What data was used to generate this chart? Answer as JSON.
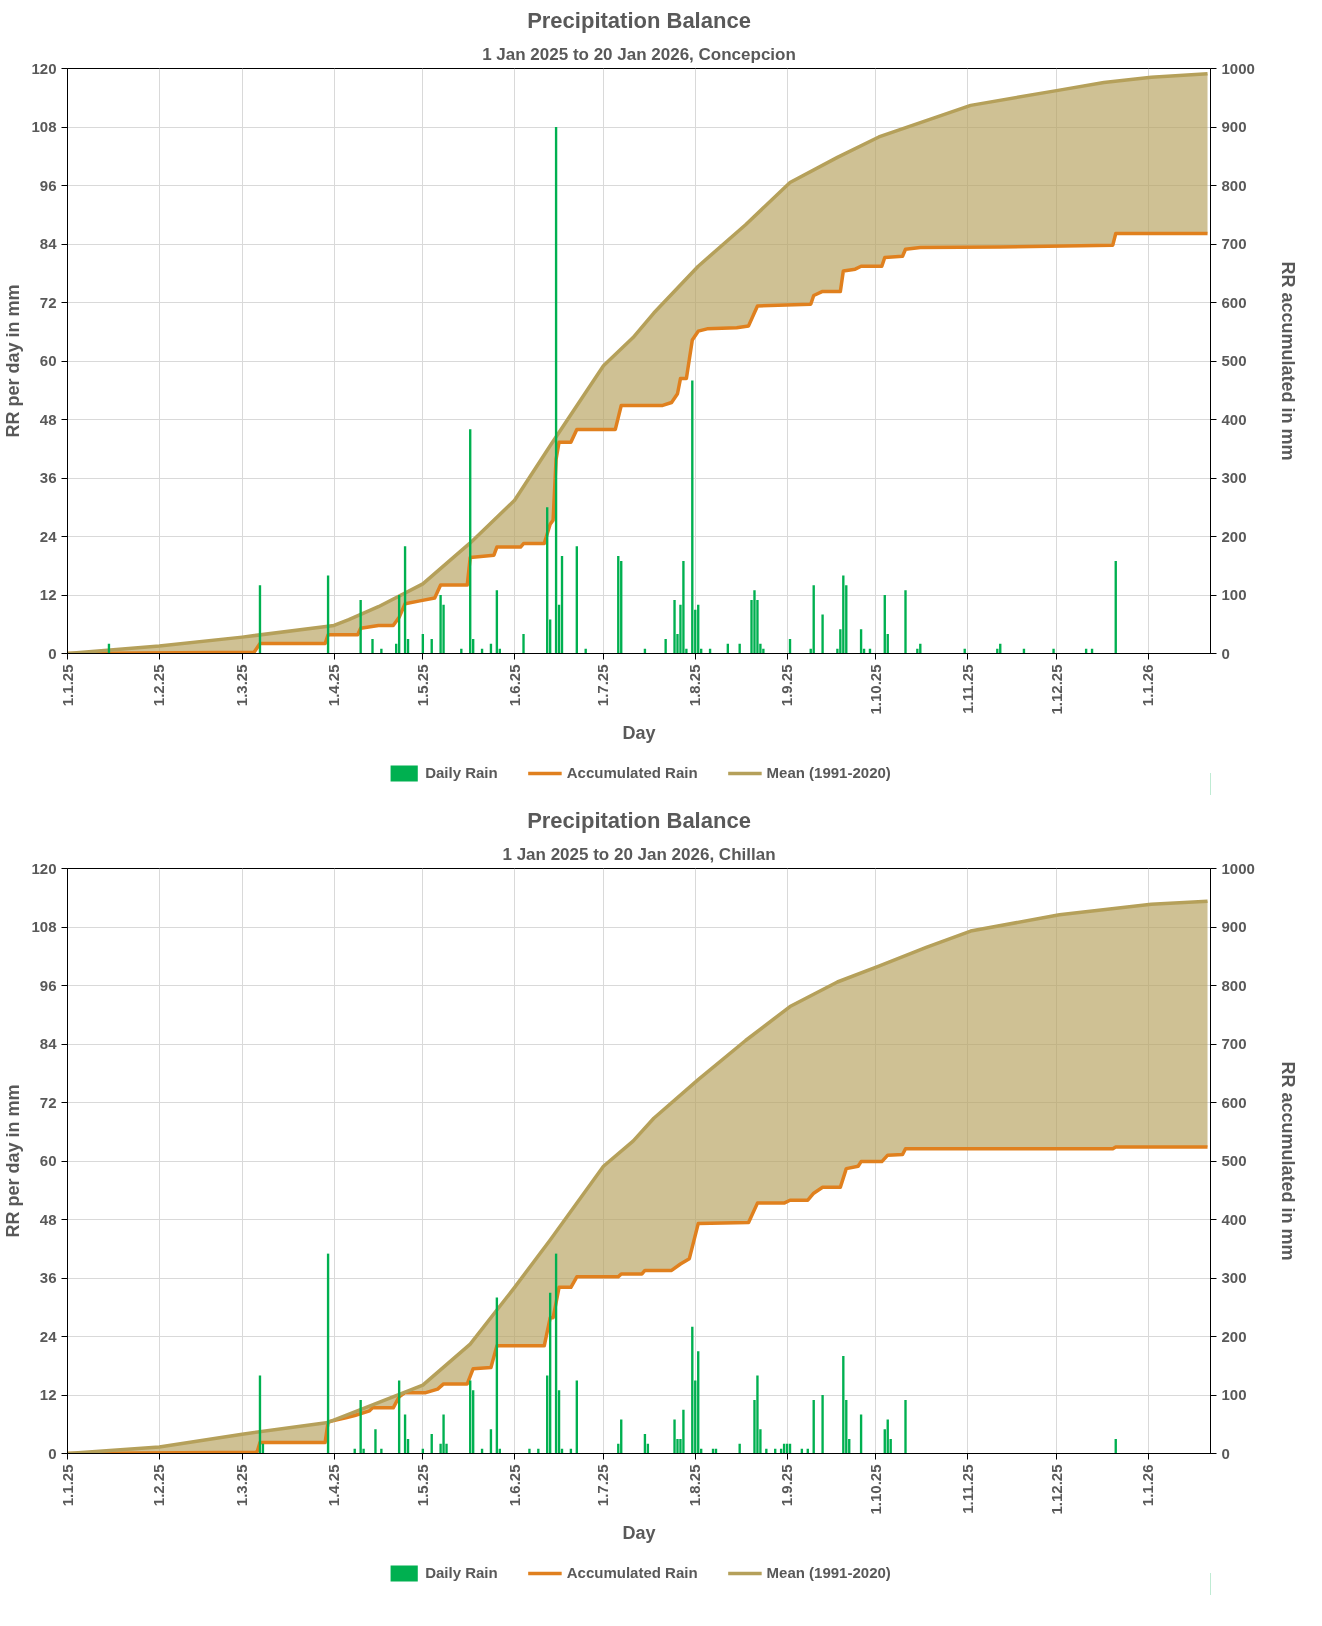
{
  "chart_data": [
    {
      "type": "bar",
      "title": "Precipitation Balance",
      "subtitle": "1 Jan 2025 to 20 Jan 2026, Concepcion",
      "xlabel": "Day",
      "ylabel": "RR per day in mm",
      "y2label": "RR accumulated in mm",
      "xlim": [
        "2025-01-01",
        "2026-01-22"
      ],
      "xticks": [
        {
          "value": "2025-01-01",
          "label": "1.1.25"
        },
        {
          "value": "2025-02-01",
          "label": "1.2.25"
        },
        {
          "value": "2025-03-01",
          "label": "1.3.25"
        },
        {
          "value": "2025-04-01",
          "label": "1.4.25"
        },
        {
          "value": "2025-05-01",
          "label": "1.5.25"
        },
        {
          "value": "2025-06-01",
          "label": "1.6.25"
        },
        {
          "value": "2025-07-01",
          "label": "1.7.25"
        },
        {
          "value": "2025-08-01",
          "label": "1.8.25"
        },
        {
          "value": "2025-09-01",
          "label": "1.9.25"
        },
        {
          "value": "2025-10-01",
          "label": "1.10.25"
        },
        {
          "value": "2025-11-01",
          "label": "1.11.25"
        },
        {
          "value": "2025-12-01",
          "label": "1.12.25"
        },
        {
          "value": "2026-01-01",
          "label": "1.1.26"
        }
      ],
      "ylim": [
        0,
        120
      ],
      "yticks": [
        0,
        12,
        24,
        36,
        48,
        60,
        72,
        84,
        96,
        108,
        120
      ],
      "y2lim": [
        0,
        1000
      ],
      "y2ticks": [
        0,
        100,
        200,
        300,
        400,
        500,
        600,
        700,
        800,
        900,
        1000
      ],
      "grid": true,
      "legend": "bottom",
      "series": [
        {
          "name": "Daily Rain",
          "color": "#00b050",
          "x": [
            "2025-01-15",
            "2025-03-07",
            "2025-03-30",
            "2025-04-10",
            "2025-04-14",
            "2025-04-17",
            "2025-04-22",
            "2025-04-23",
            "2025-04-25",
            "2025-04-26",
            "2025-05-01",
            "2025-05-04",
            "2025-05-07",
            "2025-05-08",
            "2025-05-14",
            "2025-05-17",
            "2025-05-18",
            "2025-05-21",
            "2025-05-24",
            "2025-05-26",
            "2025-05-27",
            "2025-06-04",
            "2025-06-12",
            "2025-06-13",
            "2025-06-15",
            "2025-06-16",
            "2025-06-17",
            "2025-06-22",
            "2025-06-25",
            "2025-07-06",
            "2025-07-07",
            "2025-07-15",
            "2025-07-22",
            "2025-07-25",
            "2025-07-26",
            "2025-07-27",
            "2025-07-28",
            "2025-07-29",
            "2025-07-31",
            "2025-08-01",
            "2025-08-02",
            "2025-08-03",
            "2025-08-06",
            "2025-08-12",
            "2025-08-16",
            "2025-08-20",
            "2025-08-21",
            "2025-08-22",
            "2025-08-23",
            "2025-08-24",
            "2025-09-02",
            "2025-09-09",
            "2025-09-10",
            "2025-09-13",
            "2025-09-18",
            "2025-09-19",
            "2025-09-20",
            "2025-09-21",
            "2025-09-26",
            "2025-09-27",
            "2025-09-29",
            "2025-10-04",
            "2025-10-05",
            "2025-10-11",
            "2025-10-15",
            "2025-10-16",
            "2025-10-31",
            "2025-11-11",
            "2025-11-12",
            "2025-11-20",
            "2025-11-30",
            "2025-12-11",
            "2025-12-13",
            "2025-12-21"
          ],
          "values": [
            2,
            14,
            16,
            11,
            3,
            1,
            2,
            12,
            22,
            3,
            4,
            3,
            12,
            10,
            1,
            46,
            3,
            1,
            2,
            13,
            1,
            4,
            30,
            7,
            108,
            10,
            20,
            22,
            1,
            20,
            19,
            1,
            3,
            11,
            4,
            10,
            19,
            1,
            56,
            9,
            10,
            1,
            1,
            2,
            2,
            11,
            13,
            11,
            2,
            1,
            3,
            1,
            14,
            8,
            1,
            5,
            16,
            14,
            5,
            1,
            1,
            12,
            4,
            13,
            1,
            2,
            1,
            1,
            2,
            1,
            1,
            1,
            1,
            19
          ]
        },
        {
          "name": "Accumulated Rain",
          "type": "line",
          "axis": "y2",
          "color": "#e0801e",
          "x": [
            "2025-01-01",
            "2025-03-05",
            "2025-03-07",
            "2025-03-29",
            "2025-03-30",
            "2025-04-09",
            "2025-04-10",
            "2025-04-16",
            "2025-04-21",
            "2025-04-23",
            "2025-04-25",
            "2025-04-30",
            "2025-05-05",
            "2025-05-07",
            "2025-05-16",
            "2025-05-17",
            "2025-05-25",
            "2025-05-26",
            "2025-06-03",
            "2025-06-04",
            "2025-06-11",
            "2025-06-13",
            "2025-06-14",
            "2025-06-15",
            "2025-06-16",
            "2025-06-20",
            "2025-06-22",
            "2025-07-05",
            "2025-07-07",
            "2025-07-21",
            "2025-07-24",
            "2025-07-26",
            "2025-07-27",
            "2025-07-29",
            "2025-07-31",
            "2025-08-02",
            "2025-08-05",
            "2025-08-15",
            "2025-08-19",
            "2025-08-22",
            "2025-09-09",
            "2025-09-10",
            "2025-09-13",
            "2025-09-19",
            "2025-09-20",
            "2025-09-24",
            "2025-09-26",
            "2025-10-03",
            "2025-10-04",
            "2025-10-10",
            "2025-10-11",
            "2025-10-16",
            "2025-11-12",
            "2025-12-20",
            "2025-12-21",
            "2026-01-21"
          ],
          "values": [
            0,
            2,
            17,
            17,
            32,
            32,
            43,
            48,
            48,
            62,
            85,
            90,
            95,
            117,
            117,
            164,
            168,
            182,
            182,
            188,
            188,
            221,
            228,
            332,
            361,
            361,
            383,
            383,
            424,
            424,
            429,
            444,
            470,
            470,
            536,
            551,
            555,
            557,
            560,
            594,
            597,
            612,
            619,
            619,
            654,
            657,
            662,
            662,
            677,
            679,
            691,
            694,
            695,
            698,
            718,
            718
          ]
        },
        {
          "name": "Mean (1991-2020)",
          "type": "line",
          "axis": "y2",
          "color": "#b5a05a",
          "x": [
            "2025-01-01",
            "2025-02-01",
            "2025-03-01",
            "2025-04-01",
            "2025-04-06",
            "2025-04-16",
            "2025-05-01",
            "2025-05-17",
            "2025-06-01",
            "2025-06-13",
            "2025-07-01",
            "2025-07-11",
            "2025-07-18",
            "2025-08-02",
            "2025-08-18",
            "2025-09-02",
            "2025-09-18",
            "2025-10-02",
            "2025-10-18",
            "2025-11-02",
            "2025-12-02",
            "2025-12-17",
            "2026-01-02",
            "2026-01-21"
          ],
          "values": [
            0,
            13,
            28,
            48,
            58,
            80,
            119,
            189,
            262,
            355,
            492,
            540,
            582,
            662,
            733,
            805,
            848,
            883,
            911,
            937,
            963,
            976,
            985,
            991
          ]
        }
      ]
    },
    {
      "type": "bar",
      "title": "Precipitation Balance",
      "subtitle": "1 Jan 2025 to 20 Jan 2026, Chillan",
      "xlabel": "Day",
      "ylabel": "RR per day in mm",
      "y2label": "RR accumulated in mm",
      "xlim": [
        "2025-01-01",
        "2026-01-22"
      ],
      "xticks": [
        {
          "value": "2025-01-01",
          "label": "1.1.25"
        },
        {
          "value": "2025-02-01",
          "label": "1.2.25"
        },
        {
          "value": "2025-03-01",
          "label": "1.3.25"
        },
        {
          "value": "2025-04-01",
          "label": "1.4.25"
        },
        {
          "value": "2025-05-01",
          "label": "1.5.25"
        },
        {
          "value": "2025-06-01",
          "label": "1.6.25"
        },
        {
          "value": "2025-07-01",
          "label": "1.7.25"
        },
        {
          "value": "2025-08-01",
          "label": "1.8.25"
        },
        {
          "value": "2025-09-01",
          "label": "1.9.25"
        },
        {
          "value": "2025-10-01",
          "label": "1.10.25"
        },
        {
          "value": "2025-11-01",
          "label": "1.11.25"
        },
        {
          "value": "2025-12-01",
          "label": "1.12.25"
        },
        {
          "value": "2026-01-01",
          "label": "1.1.26"
        }
      ],
      "ylim": [
        0,
        120
      ],
      "yticks": [
        0,
        12,
        24,
        36,
        48,
        60,
        72,
        84,
        96,
        108,
        120
      ],
      "y2lim": [
        0,
        1000
      ],
      "y2ticks": [
        0,
        100,
        200,
        300,
        400,
        500,
        600,
        700,
        800,
        900,
        1000
      ],
      "grid": true,
      "legend": "bottom",
      "series": [
        {
          "name": "Daily Rain",
          "color": "#00b050",
          "x": [
            "2025-03-07",
            "2025-03-08",
            "2025-03-30",
            "2025-04-08",
            "2025-04-10",
            "2025-04-11",
            "2025-04-15",
            "2025-04-17",
            "2025-04-23",
            "2025-04-25",
            "2025-04-26",
            "2025-05-01",
            "2025-05-04",
            "2025-05-07",
            "2025-05-08",
            "2025-05-09",
            "2025-05-17",
            "2025-05-18",
            "2025-05-21",
            "2025-05-24",
            "2025-05-26",
            "2025-05-27",
            "2025-06-06",
            "2025-06-09",
            "2025-06-12",
            "2025-06-13",
            "2025-06-15",
            "2025-06-16",
            "2025-06-17",
            "2025-06-20",
            "2025-06-22",
            "2025-07-06",
            "2025-07-07",
            "2025-07-15",
            "2025-07-16",
            "2025-07-25",
            "2025-07-26",
            "2025-07-27",
            "2025-07-28",
            "2025-07-31",
            "2025-08-01",
            "2025-08-02",
            "2025-08-03",
            "2025-08-07",
            "2025-08-08",
            "2025-08-16",
            "2025-08-21",
            "2025-08-22",
            "2025-08-23",
            "2025-08-25",
            "2025-08-28",
            "2025-08-30",
            "2025-08-31",
            "2025-09-01",
            "2025-09-02",
            "2025-09-06",
            "2025-09-08",
            "2025-09-10",
            "2025-09-13",
            "2025-09-20",
            "2025-09-21",
            "2025-09-22",
            "2025-09-26",
            "2025-10-04",
            "2025-10-05",
            "2025-10-06",
            "2025-10-11",
            "2025-12-21"
          ],
          "values": [
            16,
            2,
            41,
            1,
            11,
            1,
            5,
            1,
            15,
            8,
            3,
            1,
            4,
            2,
            8,
            2,
            15,
            13,
            1,
            5,
            32,
            1,
            1,
            1,
            16,
            33,
            41,
            13,
            1,
            1,
            15,
            2,
            7,
            4,
            2,
            7,
            3,
            3,
            9,
            26,
            15,
            21,
            1,
            1,
            1,
            2,
            11,
            16,
            5,
            1,
            1,
            1,
            2,
            2,
            2,
            1,
            1,
            11,
            12,
            20,
            11,
            3,
            8,
            5,
            7,
            3,
            11,
            3
          ]
        },
        {
          "name": "Accumulated Rain",
          "type": "line",
          "axis": "y2",
          "color": "#e0801e",
          "x": [
            "2025-01-01",
            "2025-03-06",
            "2025-03-07",
            "2025-03-29",
            "2025-03-30",
            "2025-04-05",
            "2025-04-08",
            "2025-04-13",
            "2025-04-14",
            "2025-04-21",
            "2025-04-23",
            "2025-04-25",
            "2025-05-02",
            "2025-05-06",
            "2025-05-08",
            "2025-05-16",
            "2025-05-18",
            "2025-05-24",
            "2025-05-26",
            "2025-06-11",
            "2025-06-13",
            "2025-06-14",
            "2025-06-16",
            "2025-06-20",
            "2025-06-22",
            "2025-07-06",
            "2025-07-07",
            "2025-07-14",
            "2025-07-15",
            "2025-07-24",
            "2025-07-27",
            "2025-07-30",
            "2025-08-02",
            "2025-08-19",
            "2025-08-22",
            "2025-08-31",
            "2025-09-02",
            "2025-09-08",
            "2025-09-10",
            "2025-09-13",
            "2025-09-19",
            "2025-09-21",
            "2025-09-25",
            "2025-09-26",
            "2025-10-03",
            "2025-10-05",
            "2025-10-10",
            "2025-10-11",
            "2025-12-20",
            "2025-12-21",
            "2026-01-21"
          ],
          "values": [
            0,
            2,
            19,
            19,
            54,
            61,
            65,
            73,
            78,
            78,
            97,
            104,
            104,
            110,
            119,
            119,
            145,
            147,
            184,
            184,
            232,
            232,
            284,
            284,
            302,
            302,
            307,
            307,
            313,
            313,
            324,
            333,
            393,
            395,
            428,
            428,
            433,
            433,
            445,
            455,
            455,
            487,
            491,
            499,
            499,
            510,
            511,
            521,
            521,
            524,
            524
          ]
        },
        {
          "name": "Mean (1991-2020)",
          "type": "line",
          "axis": "y2",
          "color": "#b5a05a",
          "x": [
            "2025-01-01",
            "2025-02-01",
            "2025-03-01",
            "2025-03-30",
            "2025-05-01",
            "2025-05-17",
            "2025-06-01",
            "2025-06-13",
            "2025-07-01",
            "2025-07-11",
            "2025-07-18",
            "2025-08-02",
            "2025-08-18",
            "2025-09-02",
            "2025-09-18",
            "2025-10-02",
            "2025-10-18",
            "2025-11-02",
            "2025-12-02",
            "2026-01-02",
            "2026-01-21"
          ],
          "values": [
            0,
            11,
            33,
            53,
            117,
            187,
            284,
            365,
            491,
            534,
            573,
            639,
            706,
            764,
            806,
            833,
            865,
            893,
            921,
            939,
            944
          ]
        }
      ]
    }
  ]
}
